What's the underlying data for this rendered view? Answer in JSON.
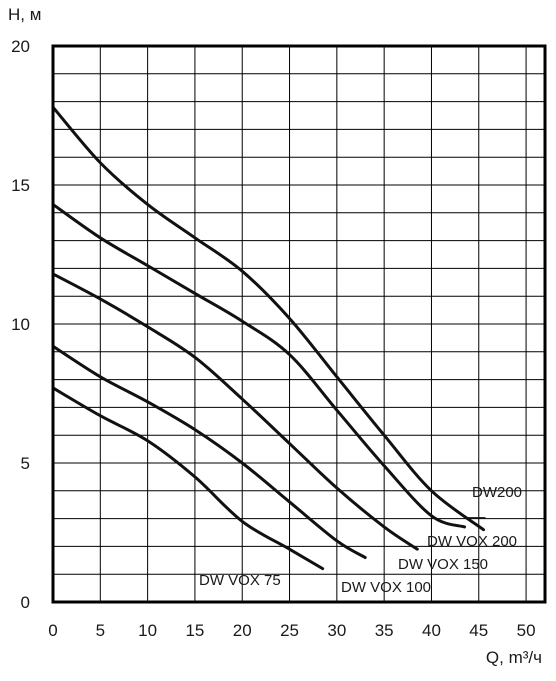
{
  "chart_data": {
    "type": "line",
    "xlabel": "Q, m³/ч",
    "ylabel": "H, м",
    "xlim": [
      0,
      52
    ],
    "ylim": [
      0,
      20
    ],
    "xticks": [
      0,
      5,
      10,
      15,
      20,
      25,
      30,
      35,
      40,
      45,
      50
    ],
    "yticks": [
      0,
      5,
      10,
      15,
      20
    ],
    "xtick_labels": [
      "0",
      "5",
      "10",
      "15",
      "20",
      "25",
      "30",
      "35",
      "40",
      "45",
      "50"
    ],
    "ytick_labels": [
      "0",
      "5",
      "10",
      "15",
      "20"
    ],
    "grid": true,
    "x_minor_step": 5,
    "y_minor_step": 1,
    "series": [
      {
        "name": "DW200",
        "x": [
          0,
          5,
          10,
          15,
          20,
          25,
          30,
          35,
          40,
          45.5
        ],
        "y": [
          17.8,
          15.8,
          14.3,
          13.1,
          11.9,
          10.2,
          8.1,
          6.0,
          4.0,
          2.6
        ]
      },
      {
        "name": "DW VOX 200",
        "x": [
          0,
          5,
          10,
          15,
          20,
          25,
          30,
          35,
          40,
          43.5
        ],
        "y": [
          14.3,
          13.1,
          12.1,
          11.1,
          10.1,
          8.9,
          6.9,
          4.9,
          3.1,
          2.7
        ]
      },
      {
        "name": "DW VOX 150",
        "x": [
          0,
          5,
          10,
          15,
          20,
          25,
          30,
          35,
          38.5
        ],
        "y": [
          11.8,
          10.9,
          9.9,
          8.8,
          7.3,
          5.7,
          4.1,
          2.7,
          1.9
        ]
      },
      {
        "name": "DW VOX 100",
        "x": [
          0,
          5,
          10,
          15,
          20,
          25,
          30,
          33
        ],
        "y": [
          9.2,
          8.1,
          7.2,
          6.2,
          5.0,
          3.6,
          2.2,
          1.6
        ]
      },
      {
        "name": "DW VOX 75",
        "x": [
          0,
          5,
          10,
          15,
          20,
          25,
          28.5
        ],
        "y": [
          7.7,
          6.7,
          5.8,
          4.5,
          2.9,
          1.9,
          1.2
        ]
      }
    ],
    "labels": {
      "dw200": "DW200",
      "vox200": "DW VOX 200",
      "vox150": "DW VOX 150",
      "vox100": "DW VOX 100",
      "vox75": "DW VOX 75"
    }
  }
}
